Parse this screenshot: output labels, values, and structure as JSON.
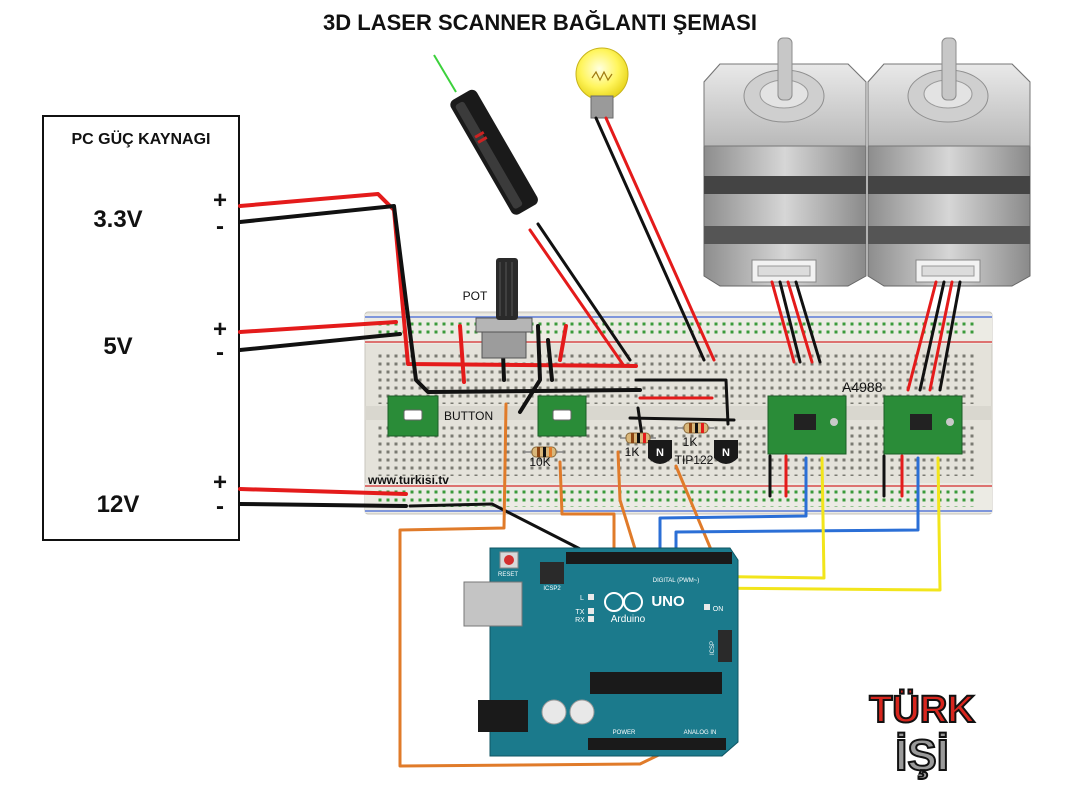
{
  "title": "3D LASER SCANNER BAĞLANTI ŞEMASI",
  "psu": {
    "title": "PC GÜÇ KAYNAGI",
    "rails": [
      {
        "label": "3.3V",
        "plus": "+",
        "minus": "-"
      },
      {
        "label": "5V",
        "plus": "+",
        "minus": "-"
      },
      {
        "label": "12V",
        "plus": "+",
        "minus": "-"
      }
    ]
  },
  "labels": {
    "pot": "POT",
    "button": "BUTTON",
    "resistor_10k": "10K",
    "resistor_1k_a": "1K",
    "resistor_1k_b": "1K",
    "transistor_type": "TIP122",
    "transistor_mark": "N",
    "driver": "A4988",
    "website": "www.turkisi.tv"
  },
  "arduino": {
    "brand": "Arduino",
    "model": "UNO",
    "reset": "RESET",
    "icsp": "ICSP2",
    "icsp_right": "ICSP",
    "led_l": "L",
    "led_tx": "TX",
    "led_rx": "RX",
    "led_on": "ON",
    "digital": "DIGITAL (PWM~)",
    "power": "POWER",
    "analog": "ANALOG IN"
  },
  "logo": {
    "line1": "TÜRK",
    "line2": "İŞİ"
  },
  "colors": {
    "red_wire": "#e41b1b",
    "black_wire": "#111111",
    "orange_wire": "#e07b2a",
    "blue_wire": "#2b6fd6",
    "yellow_wire": "#f2e51b",
    "breadboard": "#e6e4dc",
    "pcb_green": "#1f8a3a",
    "arduino_teal": "#1b7a8c"
  }
}
